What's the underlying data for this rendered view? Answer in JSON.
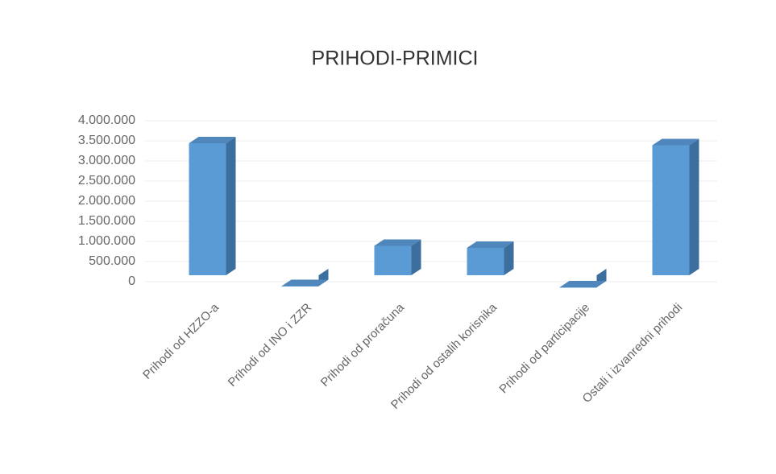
{
  "chart_data": {
    "type": "bar",
    "title": "PRIHODI-PRIMICI",
    "categories": [
      "Prihodi od HZZO-a",
      "Prihodi od INO i ZZR",
      "Prihodi od proračuna",
      "Prihodi od ostalih korisnika",
      "Prihodi od participacije",
      "Ostali i izvanredni prihodi"
    ],
    "values": [
      3600000,
      50000,
      1050000,
      1000000,
      20000,
      3550000
    ],
    "color": "#5b9bd5",
    "ylim": [
      0,
      4000000
    ],
    "yticks": [
      0,
      {
        "value": 500000,
        "label": "500.000"
      },
      {
        "value": 1000000,
        "label": "1.000.000"
      },
      {
        "value": 1500000,
        "label": "1.500.000"
      },
      {
        "value": 2000000,
        "label": "2.000.000"
      },
      {
        "value": 2500000,
        "label": "2.500.000"
      },
      {
        "value": 3000000,
        "label": "3.000.000"
      },
      {
        "value": 3500000,
        "label": "3.500.000"
      },
      {
        "value": 4000000,
        "label": "4.000.000"
      }
    ],
    "grid": true
  }
}
